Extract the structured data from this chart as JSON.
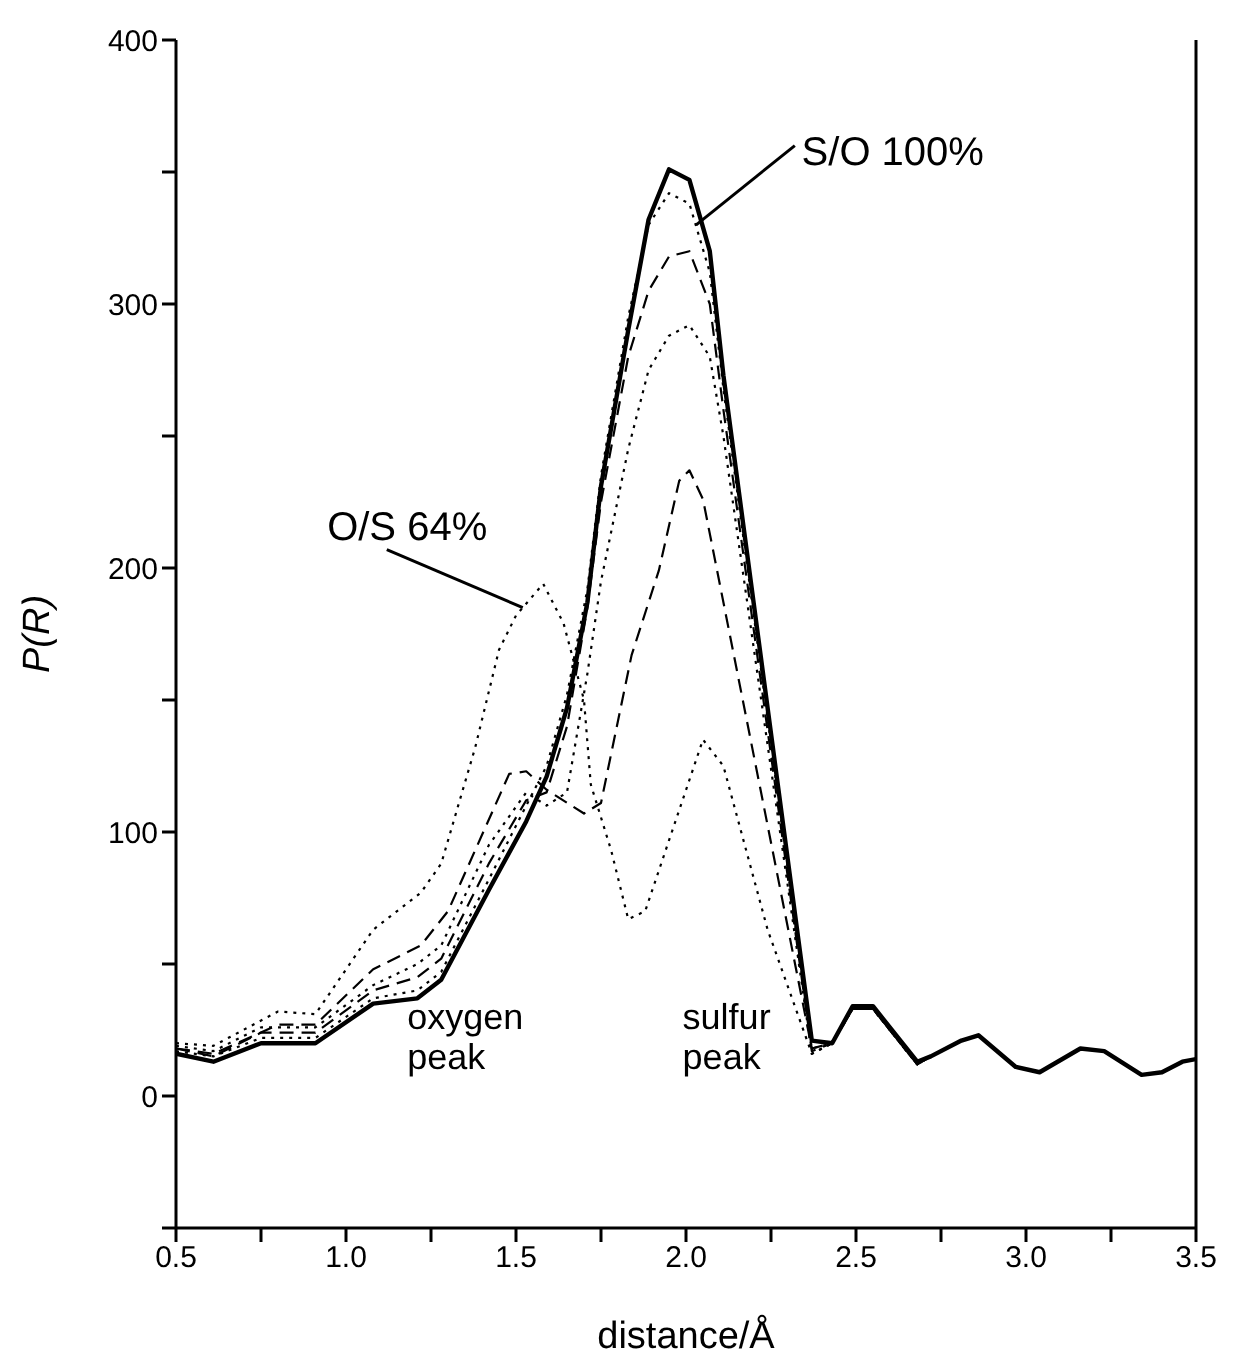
{
  "chart_data": {
    "type": "line",
    "xlabel": "distance/Å",
    "ylabel": "P(R)",
    "xlim": [
      0.5,
      3.5
    ],
    "ylim": [
      -50,
      400
    ],
    "xticks": [
      {
        "value": 0.5,
        "label": "0.5"
      },
      {
        "value": 0.75,
        "label": null
      },
      {
        "value": 1,
        "label": "1.0"
      },
      {
        "value": 1.25,
        "label": null
      },
      {
        "value": 1.5,
        "label": "1.5"
      },
      {
        "value": 1.75,
        "label": null
      },
      {
        "value": 2,
        "label": "2.0"
      },
      {
        "value": 2.25,
        "label": null
      },
      {
        "value": 2.5,
        "label": "2.5"
      },
      {
        "value": 2.75,
        "label": null
      },
      {
        "value": 3,
        "label": "3.0"
      },
      {
        "value": 3.25,
        "label": null
      },
      {
        "value": 3.5,
        "label": "3.5"
      }
    ],
    "yticks": [
      {
        "value": -50,
        "label": null
      },
      0,
      {
        "value": 50,
        "label": null
      },
      100,
      {
        "value": 150,
        "label": null
      },
      200,
      {
        "value": 250,
        "label": null
      },
      300,
      {
        "value": 350,
        "label": null
      },
      400
    ],
    "marker": "none",
    "series": [
      {
        "color": "#000000",
        "line_style": "dotted",
        "x": [
          0.5,
          0.61,
          0.8,
          0.91,
          1.08,
          1.22,
          1.28,
          1.38,
          1.45,
          1.5,
          1.58,
          1.64,
          1.7,
          1.72,
          1.78,
          1.83,
          1.88,
          1.94,
          2.05,
          2.11,
          2.24,
          2.37,
          2.43,
          2.49,
          2.55,
          2.68,
          2.72,
          2.81,
          2.86,
          2.97,
          3.04,
          3.16,
          3.23,
          3.34,
          3.4,
          3.46,
          3.5
        ],
        "values": [
          20,
          19,
          32,
          31,
          63,
          77,
          88,
          132,
          169,
          182,
          194,
          179,
          150,
          118,
          93,
          67,
          70,
          93,
          135,
          125,
          63,
          16,
          20,
          33,
          33,
          12,
          15,
          21,
          23,
          11,
          9,
          18,
          17,
          8,
          9,
          13,
          14
        ]
      },
      {
        "color": "#000000",
        "line_style": "dashed",
        "x": [
          0.5,
          0.61,
          0.8,
          0.91,
          1.08,
          1.22,
          1.3,
          1.48,
          1.53,
          1.59,
          1.7,
          1.75,
          1.84,
          1.92,
          1.98,
          2.01,
          2.05,
          2.37,
          2.43,
          2.49,
          2.55,
          2.68,
          2.72,
          2.81,
          2.86,
          2.97,
          3.04,
          3.16,
          3.23,
          3.34,
          3.4,
          3.46,
          3.5
        ],
        "values": [
          18,
          16,
          27,
          27,
          48,
          57,
          70,
          122,
          123,
          116,
          107,
          111,
          167,
          199,
          233,
          237,
          226,
          18,
          20,
          33,
          33,
          12,
          15,
          21,
          23,
          11,
          9,
          18,
          17,
          8,
          9,
          13,
          14
        ]
      },
      {
        "color": "#000000",
        "line_style": "dotted",
        "x": [
          0.5,
          0.61,
          0.75,
          0.91,
          1.08,
          1.21,
          1.28,
          1.42,
          1.53,
          1.59,
          1.65,
          1.71,
          1.75,
          1.83,
          1.89,
          1.95,
          2.01,
          2.07,
          2.11,
          2.37,
          2.43,
          2.49,
          2.55,
          2.68,
          2.72,
          2.81,
          2.86,
          2.97,
          3.04,
          3.16,
          3.23,
          3.34,
          3.4,
          3.46,
          3.5
        ],
        "values": [
          19,
          17,
          26,
          26,
          42,
          50,
          57,
          95,
          115,
          110,
          115,
          160,
          195,
          245,
          275,
          288,
          292,
          280,
          250,
          16,
          20,
          33,
          33,
          12,
          15,
          21,
          23,
          11,
          9,
          18,
          17,
          8,
          9,
          13,
          14
        ]
      },
      {
        "color": "#000000",
        "line_style": "dashed",
        "x": [
          0.5,
          0.61,
          0.75,
          0.91,
          1.08,
          1.21,
          1.28,
          1.42,
          1.53,
          1.59,
          1.65,
          1.71,
          1.75,
          1.83,
          1.89,
          1.95,
          2.01,
          2.07,
          2.11,
          2.37,
          2.43,
          2.49,
          2.55,
          2.68,
          2.72,
          2.81,
          2.86,
          2.97,
          3.04,
          3.16,
          3.23,
          3.34,
          3.4,
          3.46,
          3.5
        ],
        "values": [
          18,
          15,
          24,
          24,
          40,
          45,
          52,
          88,
          112,
          115,
          140,
          185,
          225,
          280,
          305,
          318,
          320,
          300,
          260,
          17,
          20,
          33,
          33,
          12,
          15,
          21,
          23,
          11,
          9,
          18,
          17,
          8,
          9,
          13,
          14
        ]
      },
      {
        "color": "#000000",
        "line_style": "dotted",
        "x": [
          0.5,
          0.61,
          0.75,
          0.91,
          1.08,
          1.21,
          1.28,
          1.42,
          1.53,
          1.59,
          1.65,
          1.71,
          1.75,
          1.83,
          1.89,
          1.95,
          2.01,
          2.07,
          2.11,
          2.37,
          2.43,
          2.49,
          2.55,
          2.68,
          2.72,
          2.81,
          2.86,
          2.97,
          3.04,
          3.16,
          3.23,
          3.34,
          3.4,
          3.46,
          3.5
        ],
        "values": [
          17,
          15,
          22,
          22,
          37,
          40,
          47,
          82,
          110,
          125,
          152,
          192,
          235,
          295,
          330,
          342,
          338,
          312,
          268,
          18,
          20,
          33,
          33,
          12,
          15,
          21,
          23,
          11,
          9,
          18,
          17,
          8,
          9,
          13,
          14
        ]
      },
      {
        "color": "#000000",
        "line_style": "solid",
        "x": [
          0.5,
          0.61,
          0.75,
          0.91,
          1.08,
          1.21,
          1.28,
          1.42,
          1.53,
          1.59,
          1.65,
          1.71,
          1.75,
          1.83,
          1.89,
          1.95,
          2.01,
          2.07,
          2.11,
          2.37,
          2.43,
          2.49,
          2.55,
          2.68,
          2.72,
          2.81,
          2.86,
          2.97,
          3.04,
          3.16,
          3.23,
          3.34,
          3.4,
          3.46,
          3.5
        ],
        "values": [
          16,
          13,
          20,
          20,
          35,
          37,
          44,
          78,
          104,
          121,
          147,
          187,
          231,
          290,
          332,
          351,
          347,
          320,
          273,
          21,
          20,
          34,
          34,
          13,
          15,
          21,
          23,
          11,
          9,
          18,
          17,
          8,
          9,
          13,
          14
        ]
      }
    ],
    "annotations": [
      {
        "text": "S/O 100%",
        "x": 2.03,
        "y": 330
      },
      {
        "text": "O/S 64%",
        "x": 1.52,
        "y": 185
      },
      "oxygen peak",
      "sulfur peak"
    ]
  }
}
